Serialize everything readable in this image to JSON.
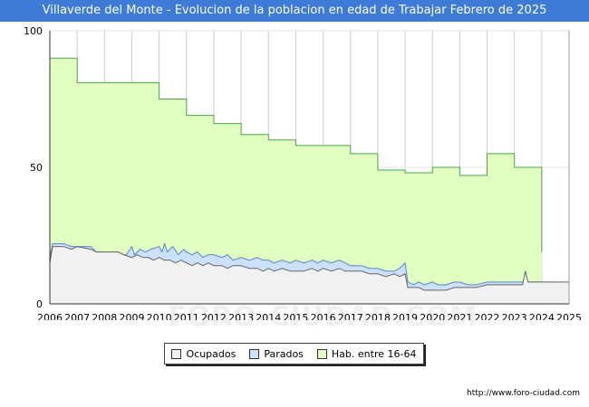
{
  "header": {
    "title": "Villaverde del Monte - Evolucion de la poblacion en edad de Trabajar Febrero de 2025"
  },
  "footer": {
    "url": "http://www.foro-ciudad.com"
  },
  "watermark": {
    "text": "FORO-CIUDAD.COM"
  },
  "legend": {
    "items": [
      {
        "label": "Ocupados",
        "color": "#f2f2f2"
      },
      {
        "label": "Parados",
        "color": "#cce0ff"
      },
      {
        "label": "Hab. entre 16-64",
        "color": "#e1ffc1"
      }
    ]
  },
  "chart_data": {
    "type": "area",
    "title": "Villaverde del Monte - Evolucion de la poblacion en edad de Trabajar Febrero de 2025",
    "xlabel": "",
    "ylabel": "",
    "xlim": [
      2006.0,
      2025.0
    ],
    "ylim": [
      0,
      100
    ],
    "x_ticks": [
      "2006",
      "2007",
      "2008",
      "2009",
      "2010",
      "2011",
      "2012",
      "2013",
      "2014",
      "2015",
      "2016",
      "2017",
      "2018",
      "2019",
      "2020",
      "2021",
      "2022",
      "2023",
      "2024",
      "2025"
    ],
    "y_ticks": [
      0,
      50,
      100
    ],
    "grid": true,
    "colors": {
      "ocupados_fill": "#f2f2f2",
      "ocupados_line": "#666666",
      "parados_fill": "#cce0ff",
      "parados_line": "#5a86c9",
      "hab_fill": "#e1ffc1",
      "hab_line": "#4aa34a",
      "grid": "#cccccc",
      "axis": "#333333"
    },
    "series": [
      {
        "name": "Hab. entre 16-64",
        "type": "step",
        "values": [
          [
            2006.0,
            90
          ],
          [
            2007.0,
            81
          ],
          [
            2008.0,
            81
          ],
          [
            2009.0,
            81
          ],
          [
            2010.0,
            75
          ],
          [
            2011.0,
            69
          ],
          [
            2012.0,
            66
          ],
          [
            2013.0,
            62
          ],
          [
            2014.0,
            60
          ],
          [
            2015.0,
            58
          ],
          [
            2016.0,
            58
          ],
          [
            2017.0,
            55
          ],
          [
            2018.0,
            49
          ],
          [
            2019.0,
            48
          ],
          [
            2020.0,
            50
          ],
          [
            2021.0,
            47
          ],
          [
            2022.0,
            55
          ],
          [
            2023.0,
            50
          ],
          [
            2023.95,
            50
          ],
          [
            2024.0,
            19
          ]
        ]
      },
      {
        "name": "Parados",
        "type": "line",
        "values": [
          [
            2006.0,
            17
          ],
          [
            2006.1,
            22
          ],
          [
            2006.5,
            22
          ],
          [
            2006.8,
            21
          ],
          [
            2007.0,
            21
          ],
          [
            2007.5,
            21
          ],
          [
            2007.7,
            19
          ],
          [
            2008.0,
            19
          ],
          [
            2008.5,
            19
          ],
          [
            2008.7,
            18
          ],
          [
            2008.8,
            18
          ],
          [
            2009.0,
            21
          ],
          [
            2009.1,
            18
          ],
          [
            2009.3,
            20
          ],
          [
            2009.5,
            19
          ],
          [
            2009.7,
            20
          ],
          [
            2010.0,
            21
          ],
          [
            2010.1,
            19
          ],
          [
            2010.2,
            22
          ],
          [
            2010.3,
            19
          ],
          [
            2010.5,
            21
          ],
          [
            2010.7,
            18
          ],
          [
            2010.9,
            20
          ],
          [
            2011.0,
            19
          ],
          [
            2011.2,
            18
          ],
          [
            2011.4,
            19
          ],
          [
            2011.6,
            17
          ],
          [
            2011.8,
            18
          ],
          [
            2012.0,
            18
          ],
          [
            2012.3,
            17
          ],
          [
            2012.5,
            18
          ],
          [
            2012.7,
            16
          ],
          [
            2013.0,
            17
          ],
          [
            2013.3,
            16
          ],
          [
            2013.6,
            17
          ],
          [
            2013.8,
            16
          ],
          [
            2014.0,
            16
          ],
          [
            2014.2,
            15
          ],
          [
            2014.5,
            16
          ],
          [
            2014.8,
            15
          ],
          [
            2015.0,
            16
          ],
          [
            2015.3,
            15
          ],
          [
            2015.6,
            16
          ],
          [
            2015.8,
            15
          ],
          [
            2016.0,
            16
          ],
          [
            2016.3,
            15
          ],
          [
            2016.6,
            16
          ],
          [
            2016.8,
            15
          ],
          [
            2017.0,
            14
          ],
          [
            2017.4,
            14
          ],
          [
            2017.7,
            13
          ],
          [
            2018.0,
            13
          ],
          [
            2018.3,
            12
          ],
          [
            2018.6,
            12
          ],
          [
            2018.8,
            13
          ],
          [
            2019.0,
            15
          ],
          [
            2019.1,
            8
          ],
          [
            2019.3,
            7
          ],
          [
            2019.5,
            8
          ],
          [
            2019.7,
            7
          ],
          [
            2020.0,
            8
          ],
          [
            2020.2,
            7
          ],
          [
            2020.5,
            7
          ],
          [
            2020.8,
            8
          ],
          [
            2021.0,
            8
          ],
          [
            2021.3,
            7
          ],
          [
            2021.6,
            7
          ],
          [
            2022.0,
            8
          ],
          [
            2022.3,
            8
          ],
          [
            2022.6,
            8
          ],
          [
            2023.0,
            8
          ],
          [
            2023.5,
            8
          ],
          [
            2024.0,
            8
          ],
          [
            2024.5,
            8
          ],
          [
            2025.0,
            7
          ]
        ]
      },
      {
        "name": "Ocupados",
        "type": "line",
        "values": [
          [
            2006.0,
            15
          ],
          [
            2006.1,
            21
          ],
          [
            2006.5,
            21
          ],
          [
            2006.8,
            20
          ],
          [
            2007.0,
            21
          ],
          [
            2007.5,
            20
          ],
          [
            2007.7,
            19
          ],
          [
            2008.0,
            19
          ],
          [
            2008.5,
            19
          ],
          [
            2008.7,
            18
          ],
          [
            2009.0,
            17
          ],
          [
            2009.2,
            18
          ],
          [
            2009.4,
            17
          ],
          [
            2009.6,
            17
          ],
          [
            2009.8,
            16
          ],
          [
            2010.0,
            17
          ],
          [
            2010.2,
            16
          ],
          [
            2010.4,
            16
          ],
          [
            2010.6,
            15
          ],
          [
            2010.8,
            16
          ],
          [
            2011.0,
            15
          ],
          [
            2011.2,
            14
          ],
          [
            2011.4,
            15
          ],
          [
            2011.6,
            14
          ],
          [
            2011.8,
            15
          ],
          [
            2012.0,
            14
          ],
          [
            2012.3,
            14
          ],
          [
            2012.5,
            13
          ],
          [
            2012.7,
            14
          ],
          [
            2013.0,
            14
          ],
          [
            2013.3,
            13
          ],
          [
            2013.6,
            13
          ],
          [
            2013.8,
            12
          ],
          [
            2014.0,
            13
          ],
          [
            2014.2,
            12
          ],
          [
            2014.5,
            13
          ],
          [
            2014.8,
            12
          ],
          [
            2015.0,
            12
          ],
          [
            2015.3,
            12
          ],
          [
            2015.6,
            13
          ],
          [
            2015.8,
            12
          ],
          [
            2016.0,
            13
          ],
          [
            2016.3,
            12
          ],
          [
            2016.6,
            13
          ],
          [
            2016.8,
            12
          ],
          [
            2017.0,
            12
          ],
          [
            2017.4,
            12
          ],
          [
            2017.7,
            11
          ],
          [
            2018.0,
            11
          ],
          [
            2018.3,
            10
          ],
          [
            2018.6,
            11
          ],
          [
            2018.8,
            10
          ],
          [
            2019.0,
            11
          ],
          [
            2019.1,
            6
          ],
          [
            2019.3,
            6
          ],
          [
            2019.5,
            6
          ],
          [
            2019.7,
            5
          ],
          [
            2020.0,
            5
          ],
          [
            2020.3,
            5
          ],
          [
            2020.5,
            5
          ],
          [
            2020.8,
            6
          ],
          [
            2021.0,
            6
          ],
          [
            2021.3,
            6
          ],
          [
            2021.6,
            6
          ],
          [
            2022.0,
            7
          ],
          [
            2022.3,
            7
          ],
          [
            2022.6,
            7
          ],
          [
            2023.0,
            7
          ],
          [
            2023.3,
            7
          ],
          [
            2023.4,
            12
          ],
          [
            2023.5,
            8
          ],
          [
            2024.0,
            8
          ],
          [
            2024.5,
            8
          ],
          [
            2025.0,
            8
          ]
        ]
      }
    ]
  }
}
